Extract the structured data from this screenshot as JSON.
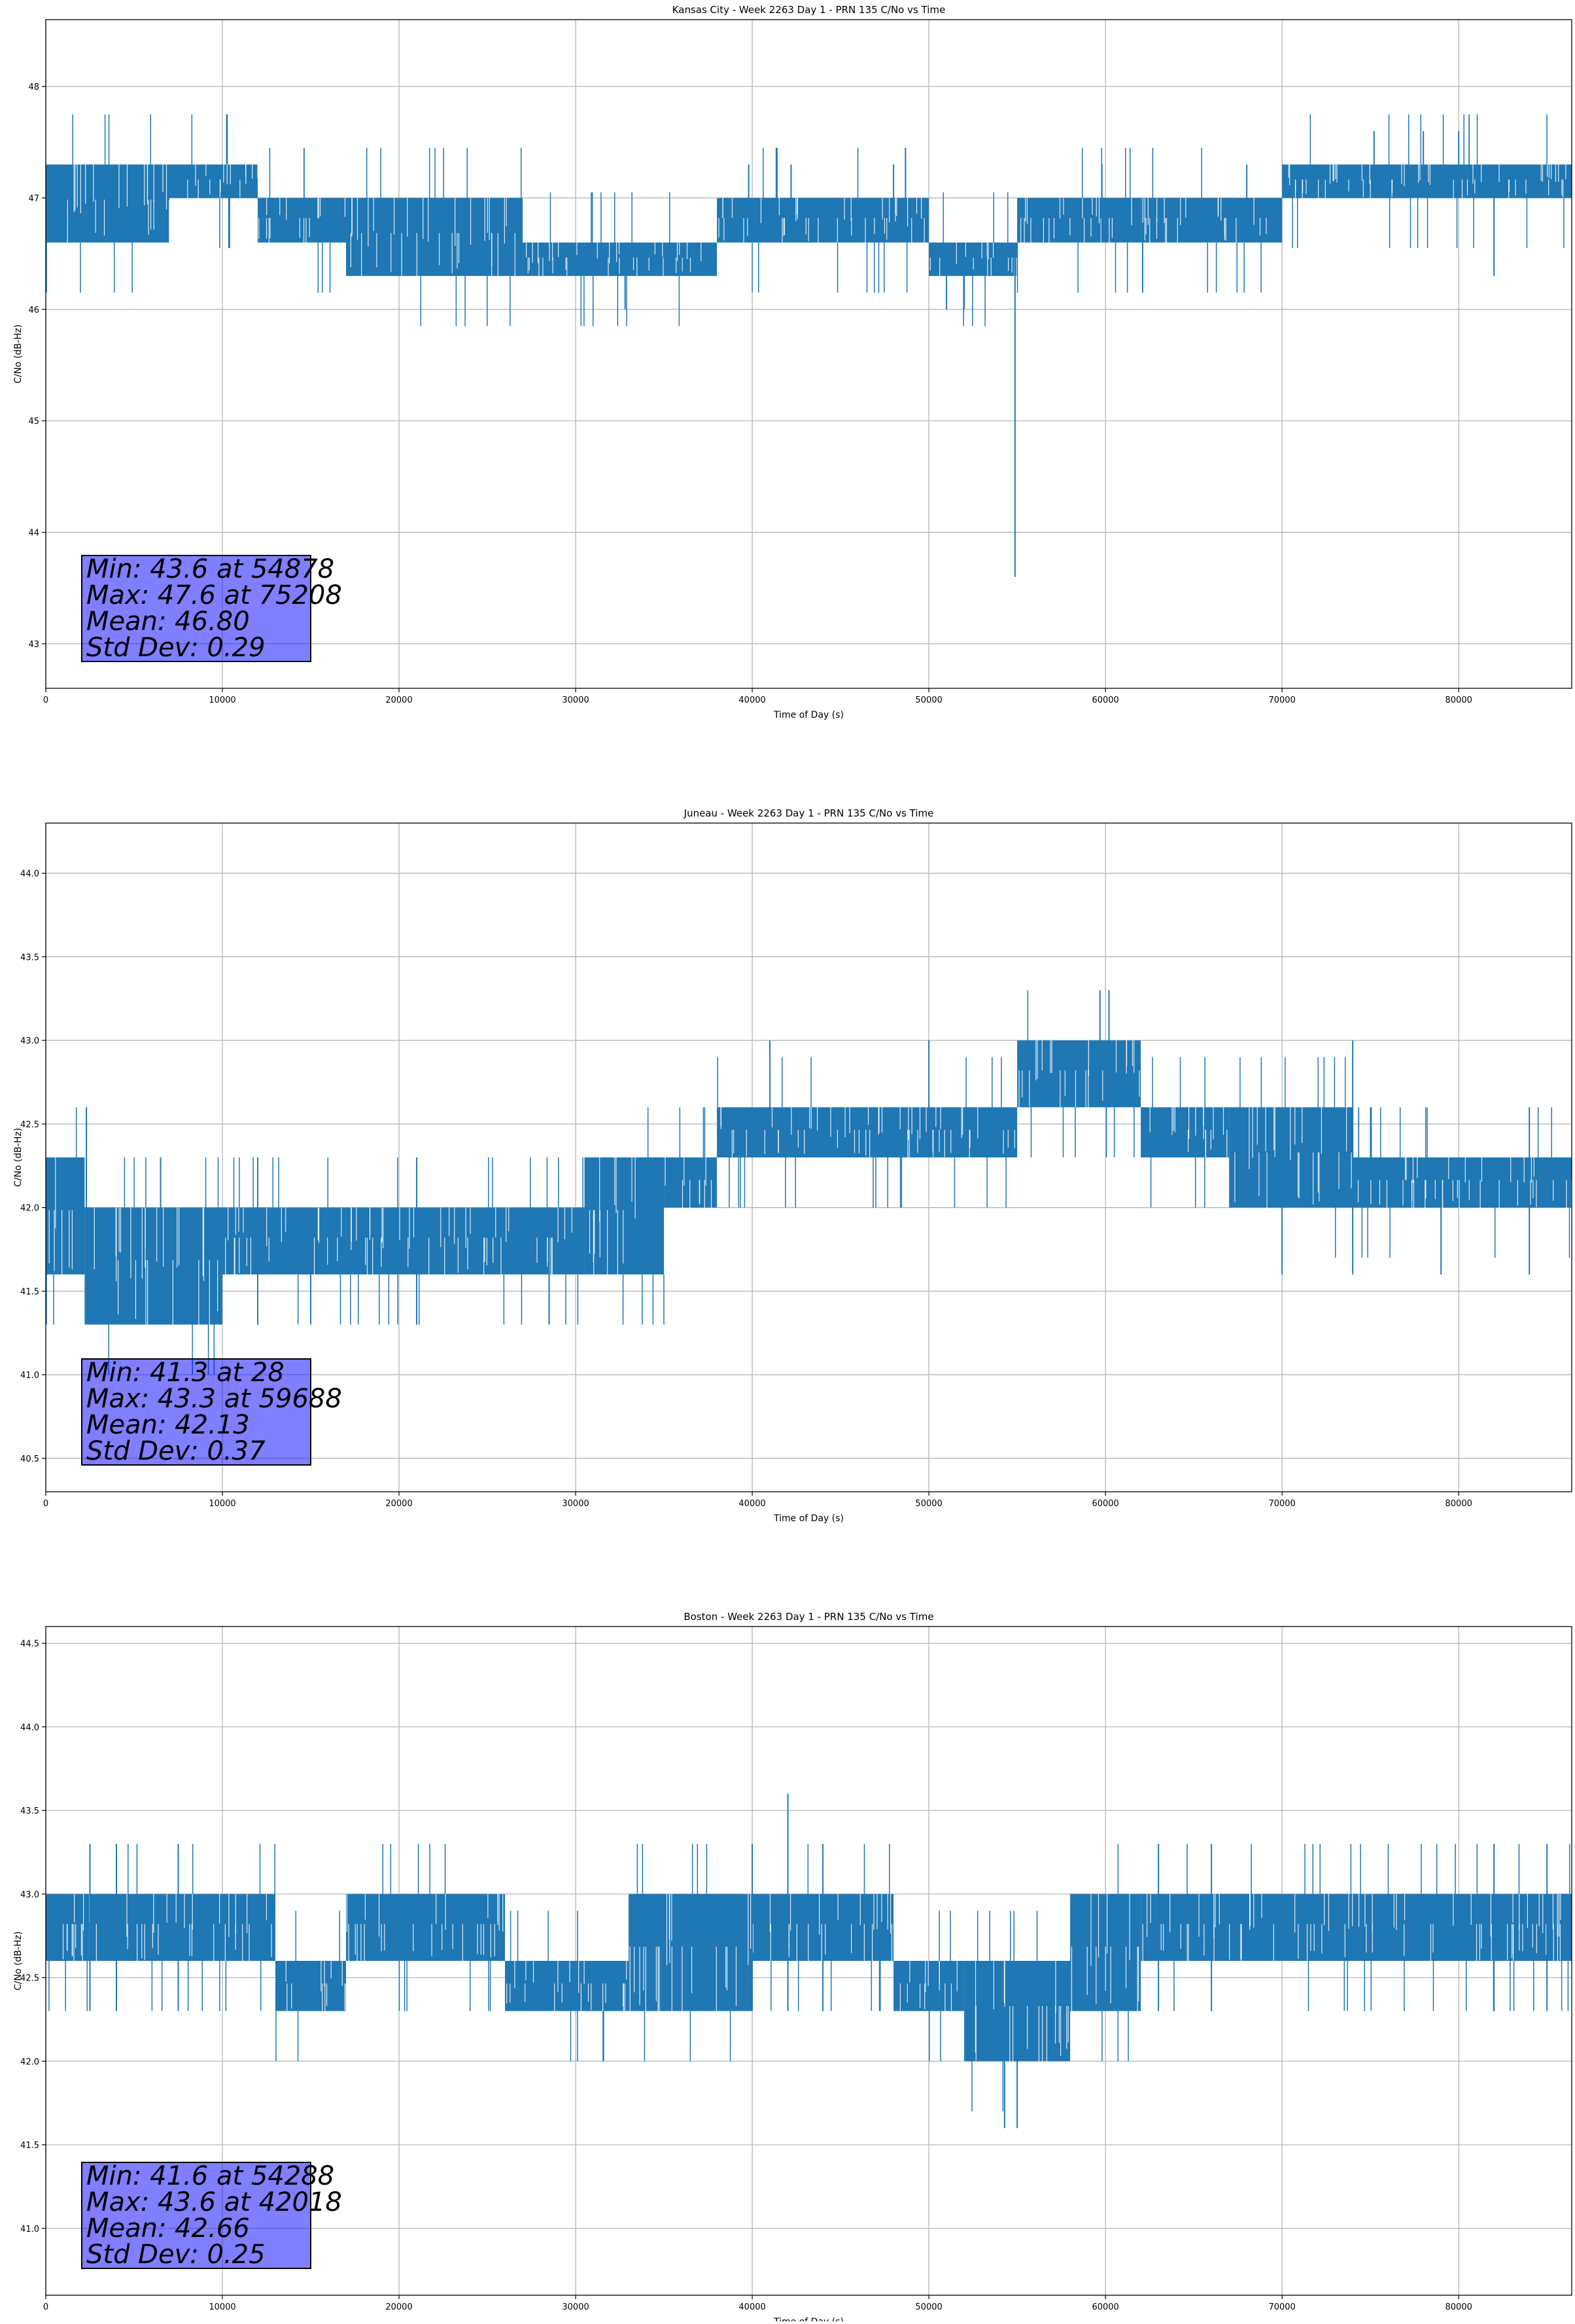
{
  "colors": {
    "series": "#1f77b4",
    "grid": "#b0b0b0",
    "stats_box_fill": "#8080ff",
    "axes": "#000000"
  },
  "chart_data": [
    {
      "type": "line",
      "title": "Kansas City - Week 2263 Day 1 - PRN 135 C/No vs Time",
      "xlabel": "Time of Day (s)",
      "ylabel": "C/No (dB-Hz)",
      "xlim": [
        0,
        86400
      ],
      "ylim": [
        42.6,
        48.6
      ],
      "x_ticks": [
        0,
        10000,
        20000,
        30000,
        40000,
        50000,
        60000,
        70000,
        80000
      ],
      "y_ticks": [
        43,
        44,
        45,
        46,
        47,
        48
      ],
      "y_tick_labels": [
        "43",
        "44",
        "45",
        "46",
        "47",
        "48"
      ],
      "grid": true,
      "stats": {
        "lines": [
          "Min: 43.6 at 54878",
          "Max: 47.6 at 75208",
          "Mean: 46.80",
          "Std Dev: 0.29"
        ]
      },
      "series": [
        {
          "segments": [
            {
              "x": [
                0,
                7000
              ],
              "low": 46.6,
              "high": 47.3
            },
            {
              "x": [
                7000,
                12000
              ],
              "low": 47.0,
              "high": 47.3
            },
            {
              "x": [
                12000,
                17000
              ],
              "low": 46.6,
              "high": 47.0
            },
            {
              "x": [
                17000,
                27000
              ],
              "low": 46.3,
              "high": 47.0
            },
            {
              "x": [
                27000,
                38000
              ],
              "low": 46.3,
              "high": 46.6
            },
            {
              "x": [
                38000,
                50000
              ],
              "low": 46.6,
              "high": 47.0
            },
            {
              "x": [
                50000,
                55000
              ],
              "low": 46.3,
              "high": 46.6
            },
            {
              "x": [
                55000,
                62000
              ],
              "low": 46.6,
              "high": 47.0
            },
            {
              "x": [
                62000,
                70000
              ],
              "low": 46.6,
              "high": 47.0
            },
            {
              "x": [
                70000,
                86400
              ],
              "low": 47.0,
              "high": 47.3
            }
          ],
          "spikes": [
            {
              "x": 0,
              "low": 46.3,
              "high": 47.3
            },
            {
              "x": 32800,
              "low": 46.0,
              "high": 46.6
            },
            {
              "x": 39800,
              "low": 46.6,
              "high": 47.3
            },
            {
              "x": 42200,
              "low": 46.6,
              "high": 47.3
            },
            {
              "x": 48000,
              "low": 46.6,
              "high": 47.3
            },
            {
              "x": 51000,
              "low": 46.0,
              "high": 46.6
            },
            {
              "x": 52000,
              "low": 46.0,
              "high": 46.6
            },
            {
              "x": 54878,
              "low": 43.6,
              "high": 46.6
            },
            {
              "x": 59800,
              "low": 46.6,
              "high": 47.3
            },
            {
              "x": 68000,
              "low": 46.6,
              "high": 47.3
            },
            {
              "x": 75208,
              "low": 47.0,
              "high": 47.6
            },
            {
              "x": 78000,
              "low": 47.0,
              "high": 47.6
            },
            {
              "x": 80000,
              "low": 47.0,
              "high": 47.6
            },
            {
              "x": 82000,
              "low": 46.3,
              "high": 47.0
            }
          ]
        }
      ]
    },
    {
      "type": "line",
      "title": "Juneau - Week 2263 Day 1 - PRN 135 C/No vs Time",
      "xlabel": "Time of Day (s)",
      "ylabel": "C/No (dB-Hz)",
      "xlim": [
        0,
        86400
      ],
      "ylim": [
        40.3,
        44.3
      ],
      "x_ticks": [
        0,
        10000,
        20000,
        30000,
        40000,
        50000,
        60000,
        70000,
        80000
      ],
      "y_ticks": [
        40.5,
        41.0,
        41.5,
        42.0,
        42.5,
        43.0,
        43.5,
        44.0
      ],
      "y_tick_labels": [
        "40.5",
        "41.0",
        "41.5",
        "42.0",
        "42.5",
        "43.0",
        "43.5",
        "44.0"
      ],
      "grid": true,
      "stats": {
        "lines": [
          "Min: 41.3 at 28",
          "Max: 43.3 at 59688",
          "Mean: 42.13",
          "Std Dev: 0.37"
        ]
      },
      "series": [
        {
          "segments": [
            {
              "x": [
                0,
                2200
              ],
              "low": 41.6,
              "high": 42.3
            },
            {
              "x": [
                2200,
                10000
              ],
              "low": 41.3,
              "high": 42.0
            },
            {
              "x": [
                10000,
                30500
              ],
              "low": 41.6,
              "high": 42.0
            },
            {
              "x": [
                30500,
                35000
              ],
              "low": 41.6,
              "high": 42.3
            },
            {
              "x": [
                35000,
                38000
              ],
              "low": 42.0,
              "high": 42.3
            },
            {
              "x": [
                38000,
                50000
              ],
              "low": 42.3,
              "high": 42.6
            },
            {
              "x": [
                50000,
                55000
              ],
              "low": 42.3,
              "high": 42.6
            },
            {
              "x": [
                55000,
                59000
              ],
              "low": 42.6,
              "high": 43.0
            },
            {
              "x": [
                59000,
                62000
              ],
              "low": 42.6,
              "high": 43.0
            },
            {
              "x": [
                62000,
                67000
              ],
              "low": 42.3,
              "high": 42.6
            },
            {
              "x": [
                67000,
                74000
              ],
              "low": 42.0,
              "high": 42.6
            },
            {
              "x": [
                74000,
                86400
              ],
              "low": 42.0,
              "high": 42.3
            }
          ],
          "spikes": [
            {
              "x": 28,
              "low": 41.3,
              "high": 42.3
            },
            {
              "x": 2300,
              "low": 41.3,
              "high": 42.6
            },
            {
              "x": 6500,
              "low": 41.3,
              "high": 42.3
            },
            {
              "x": 12000,
              "low": 41.3,
              "high": 42.3
            },
            {
              "x": 15000,
              "low": 41.3,
              "high": 42.0
            },
            {
              "x": 21000,
              "low": 41.3,
              "high": 42.3
            },
            {
              "x": 28500,
              "low": 41.3,
              "high": 42.0
            },
            {
              "x": 41000,
              "low": 42.3,
              "high": 43.0
            },
            {
              "x": 50000,
              "low": 42.3,
              "high": 43.0
            },
            {
              "x": 59688,
              "low": 42.6,
              "high": 43.3
            },
            {
              "x": 60200,
              "low": 42.6,
              "high": 43.3
            },
            {
              "x": 70000,
              "low": 41.6,
              "high": 42.3
            },
            {
              "x": 74000,
              "low": 41.6,
              "high": 43.0
            },
            {
              "x": 79000,
              "low": 41.6,
              "high": 42.3
            },
            {
              "x": 84000,
              "low": 41.6,
              "high": 42.6
            }
          ]
        }
      ]
    },
    {
      "type": "line",
      "title": "Boston - Week 2263 Day 1 - PRN 135 C/No vs Time",
      "xlabel": "Time of Day (s)",
      "ylabel": "C/No (dB-Hz)",
      "xlim": [
        0,
        86400
      ],
      "ylim": [
        40.6,
        44.6
      ],
      "x_ticks": [
        0,
        10000,
        20000,
        30000,
        40000,
        50000,
        60000,
        70000,
        80000
      ],
      "y_ticks": [
        41.0,
        41.5,
        42.0,
        42.5,
        43.0,
        43.5,
        44.0,
        44.5
      ],
      "y_tick_labels": [
        "41.0",
        "41.5",
        "42.0",
        "42.5",
        "43.0",
        "43.5",
        "44.0",
        "44.5"
      ],
      "grid": true,
      "stats": {
        "lines": [
          "Min: 41.6 at 54288",
          "Max: 43.6 at 42018",
          "Mean: 42.66",
          "Std Dev: 0.25"
        ]
      },
      "series": [
        {
          "segments": [
            {
              "x": [
                0,
                13000
              ],
              "low": 42.6,
              "high": 43.0
            },
            {
              "x": [
                13000,
                17000
              ],
              "low": 42.3,
              "high": 42.6
            },
            {
              "x": [
                17000,
                26000
              ],
              "low": 42.6,
              "high": 43.0
            },
            {
              "x": [
                26000,
                33000
              ],
              "low": 42.3,
              "high": 42.6
            },
            {
              "x": [
                33000,
                40000
              ],
              "low": 42.3,
              "high": 43.0
            },
            {
              "x": [
                40000,
                48000
              ],
              "low": 42.6,
              "high": 43.0
            },
            {
              "x": [
                48000,
                52000
              ],
              "low": 42.3,
              "high": 42.6
            },
            {
              "x": [
                52000,
                58000
              ],
              "low": 42.0,
              "high": 42.6
            },
            {
              "x": [
                58000,
                62000
              ],
              "low": 42.3,
              "high": 43.0
            },
            {
              "x": [
                62000,
                86400
              ],
              "low": 42.6,
              "high": 43.0
            }
          ],
          "spikes": [
            {
              "x": 2500,
              "low": 42.3,
              "high": 43.3
            },
            {
              "x": 4000,
              "low": 42.3,
              "high": 43.3
            },
            {
              "x": 7500,
              "low": 42.3,
              "high": 43.3
            },
            {
              "x": 40000,
              "low": 42.3,
              "high": 43.3
            },
            {
              "x": 42018,
              "low": 42.3,
              "high": 43.6
            },
            {
              "x": 44000,
              "low": 42.3,
              "high": 43.3
            },
            {
              "x": 54288,
              "low": 41.6,
              "high": 42.3
            },
            {
              "x": 55000,
              "low": 41.6,
              "high": 42.3
            },
            {
              "x": 63000,
              "low": 42.3,
              "high": 43.3
            },
            {
              "x": 66000,
              "low": 42.3,
              "high": 43.3
            },
            {
              "x": 82000,
              "low": 42.3,
              "high": 43.3
            },
            {
              "x": 85000,
              "low": 42.3,
              "high": 43.3
            }
          ]
        }
      ]
    }
  ]
}
